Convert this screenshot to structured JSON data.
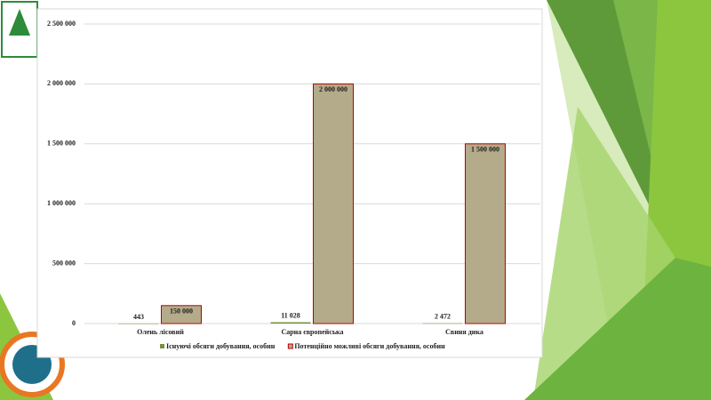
{
  "chart_data": {
    "type": "bar",
    "categories": [
      "Олень лісовий",
      "Сарна європейська",
      "Свиня дика"
    ],
    "series": [
      {
        "name": "Існуючі обсяги добування, особин",
        "color": "#76923c",
        "values": [
          443,
          11028,
          2472
        ],
        "value_labels": [
          "443",
          "11 028",
          "2 472"
        ]
      },
      {
        "name": "Потенційно можливі обсяги добування, особин",
        "color": "#b3ab8a",
        "edge_color": "#c00000",
        "values": [
          150000,
          2000000,
          1500000
        ],
        "value_labels": [
          "150 000",
          "2 000 000",
          "1 500 000"
        ]
      }
    ],
    "ylim": [
      0,
      2500000
    ],
    "yticks": [
      0,
      {
        "value": 500000,
        "label": "500 000"
      },
      {
        "value": 1000000,
        "label": "1 000 000"
      },
      {
        "value": 1500000,
        "label": "1 500 000"
      },
      {
        "value": 2000000,
        "label": "2 000 000"
      },
      {
        "value": 2500000,
        "label": "2 500 000"
      }
    ],
    "grid": true
  }
}
